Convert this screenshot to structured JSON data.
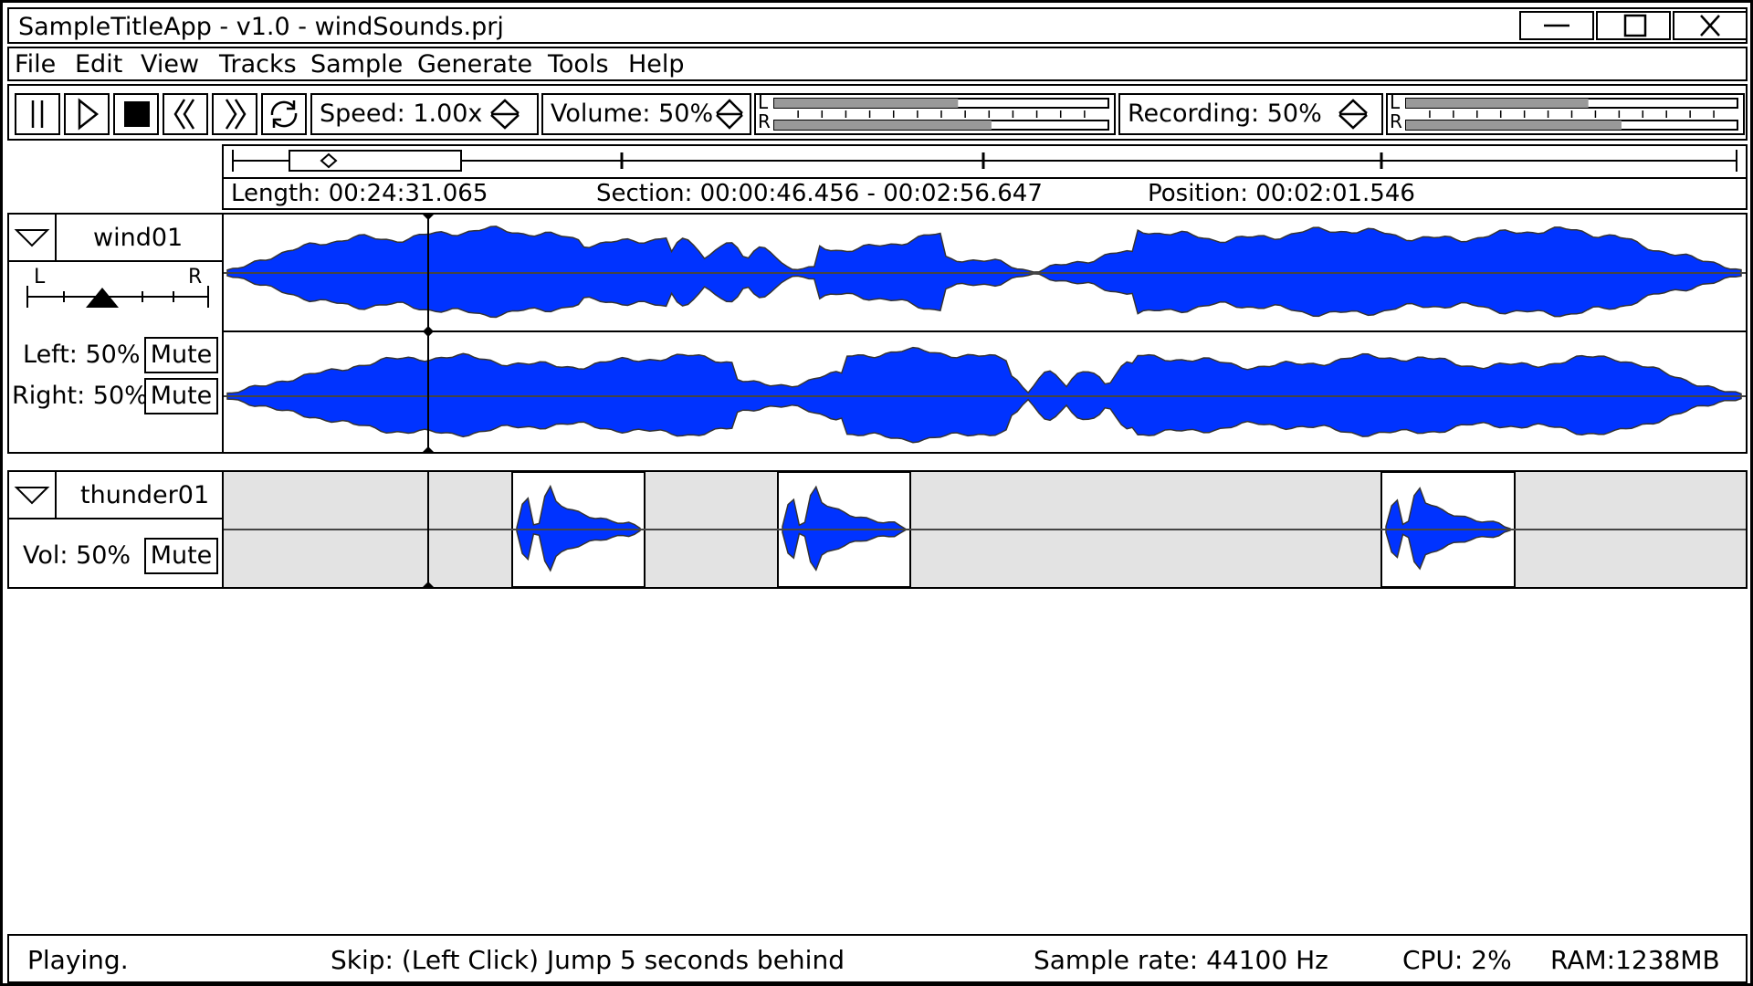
{
  "window": {
    "title": "SampleTitleApp - v1.0 - windSounds.prj"
  },
  "menu": [
    "File",
    "Edit",
    "View",
    "Tracks",
    "Sample",
    "Generate",
    "Tools",
    "Help"
  ],
  "toolbar": {
    "speed": "Speed: 1.00x",
    "volume": "Volume: 50%",
    "recording": "Recording: 50%",
    "meter_left": "L",
    "meter_right": "R",
    "output_level": {
      "left": 0.55,
      "right": 0.65
    },
    "input_level": {
      "left": 0.55,
      "right": 0.65
    }
  },
  "timeline": {
    "length": "Length: 00:24:31.065",
    "section": "Section: 00:00:46.456  -  00:02:56.647",
    "position": "Position: 00:02:01.546"
  },
  "tracks": [
    {
      "name": "wind01",
      "pan_left": "L",
      "pan_right": "R",
      "left_label": "Left: 50%",
      "right_label": "Right: 50%",
      "mute": "Mute"
    },
    {
      "name": "thunder01",
      "vol_label": "Vol: 50%",
      "mute": "Mute"
    }
  ],
  "status": {
    "state": "Playing.",
    "hint": "Skip: (Left Click) Jump 5 seconds behind",
    "sample_rate": "Sample rate: 44100 Hz",
    "cpu": "CPU: 2%",
    "ram": "RAM:1238MB"
  },
  "colors": {
    "waveform": "#0033ff",
    "inactive_region": "#e3e3e3"
  },
  "icons": [
    "minimize-icon",
    "maximize-icon",
    "close-icon",
    "pause-icon",
    "play-icon",
    "stop-icon",
    "rewind-icon",
    "fast-forward-icon",
    "loop-icon",
    "spinner-icon",
    "collapse-icon"
  ]
}
